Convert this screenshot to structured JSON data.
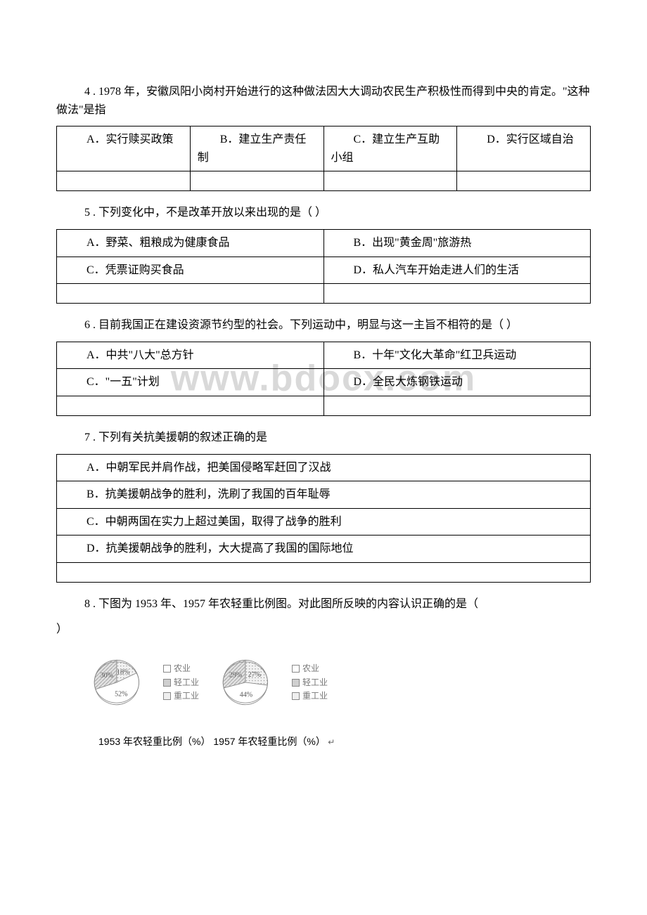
{
  "q4": {
    "text": "4 . 1978 年，安徽凤阳小岗村开始进行的这种做法因大大调动农民生产积极性而得到中央的肯定。\"这种做法\"是指",
    "options": {
      "a": "A．实行赎买政策",
      "b": "B．建立生产责任制",
      "c": "C．建立生产互助小组",
      "d": "D．实行区域自治"
    }
  },
  "q5": {
    "text": "5 . 下列变化中，不是改革开放以来出现的是（ ）",
    "options": {
      "a": "A．野菜、粗粮成为健康食品",
      "b": "B．出现\"黄金周\"旅游热",
      "c": "C．凭票证购买食品",
      "d": "D．私人汽车开始走进人们的生活"
    }
  },
  "q6": {
    "text": "6 . 目前我国正在建设资源节约型的社会。下列运动中，明显与这一主旨不相符的是（ ）",
    "options": {
      "a": "A．中共\"八大\"总方针",
      "b": "B．十年\"文化大革命\"红卫兵运动",
      "c": "C．\"一五\"计划",
      "d": "D．全民大炼钢铁运动"
    },
    "watermark": "www.bdocx.com"
  },
  "q7": {
    "text": "7 . 下列有关抗美援朝的叙述正确的是",
    "options": {
      "a": "A．中朝军民并肩作战，把美国侵略军赶回了汉战",
      "b": "B．抗美援朝战争的胜利，洗刷了我国的百年耻辱",
      "c": "C．中朝两国在实力上超过美国，取得了战争的胜利",
      "d": "D．抗美援朝战争的胜利，大大提高了我国的国际地位"
    }
  },
  "q8": {
    "text_line1": "8 . 下图为 1953 年、1957 年农轻重比例图。对此图所反映的内容认识正确的是（",
    "text_line2": "）",
    "caption": "1953 年农轻重比例（%） 1957 年农轻重比例（%）",
    "legend": {
      "l1": "农业",
      "l2": "轻工业",
      "l3": "重工业"
    },
    "chart1953": {
      "slices": [
        {
          "label": "18%",
          "value": 18,
          "fill": "#efefef",
          "hatch": "dots"
        },
        {
          "label": "52%",
          "value": 52,
          "fill": "#ffffff",
          "hatch": "none"
        },
        {
          "label": "30%",
          "value": 30,
          "fill": "#d6d6d6",
          "hatch": "diag"
        }
      ],
      "stroke": "#888888",
      "label_fontsize": 12,
      "label_color": "#555555"
    },
    "chart1957": {
      "slices": [
        {
          "label": "27%",
          "value": 27,
          "fill": "#efefef",
          "hatch": "dots"
        },
        {
          "label": "44%",
          "value": 44,
          "fill": "#ffffff",
          "hatch": "none"
        },
        {
          "label": "29%",
          "value": 29,
          "fill": "#d6d6d6",
          "hatch": "diag"
        }
      ],
      "stroke": "#888888",
      "label_fontsize": 12,
      "label_color": "#555555"
    },
    "legend_swatches": {
      "agri_fill": "#ffffff",
      "light_fill": "#cfcfcf",
      "heavy_fill": "#efefef"
    }
  }
}
